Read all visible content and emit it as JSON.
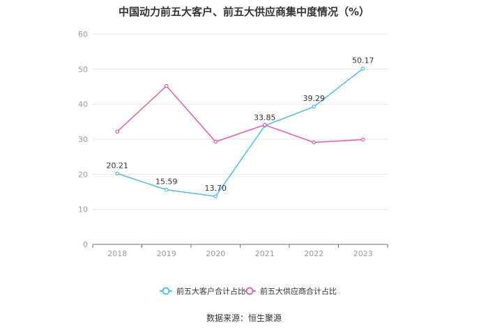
{
  "chart_data": {
    "type": "line",
    "title": "中国动力前五大客户、前五大供应商集中度情况（%）",
    "xlabel": "",
    "ylabel": "",
    "categories": [
      "2018",
      "2019",
      "2020",
      "2021",
      "2022",
      "2023"
    ],
    "ylim": [
      0,
      60
    ],
    "yticks": [
      "0",
      "10",
      "20",
      "30",
      "40",
      "50",
      "60"
    ],
    "grid": true,
    "legend_position": "bottom",
    "series": [
      {
        "name": "前五大客户合计占比",
        "color": "#5bbde8",
        "values": [
          20.21,
          15.59,
          13.7,
          33.85,
          39.29,
          50.17
        ],
        "labels": [
          "20.21",
          "15.59",
          "13.70",
          "33.85",
          "39.29",
          "50.17"
        ]
      },
      {
        "name": "前五大供应商合计占比",
        "color": "#d568b3",
        "values": [
          32.2,
          45.2,
          29.3,
          34.1,
          29.1,
          29.9
        ],
        "labels": []
      }
    ]
  },
  "source": "数据来源：恒生聚源"
}
